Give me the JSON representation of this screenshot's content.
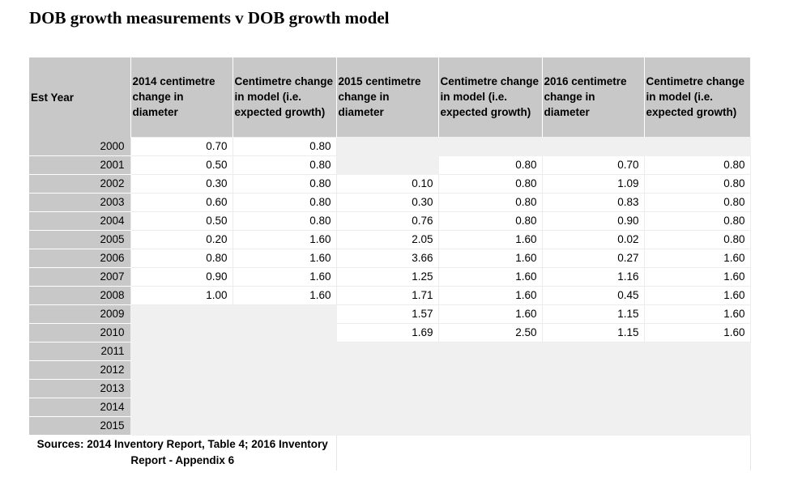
{
  "title": "DOB growth measurements v DOB growth model",
  "headers": [
    "Est Year",
    "2014 centimetre change in diameter",
    "Centimetre change in model (i.e. expected growth)",
    "2015 centimetre change in diameter",
    "Centimetre change in model (i.e. expected growth)",
    "2016 centimetre change in diameter",
    "Centimetre change in model (i.e. expected growth)"
  ],
  "rows": [
    {
      "year": "2000",
      "m2014": "0.70",
      "e2014": "0.80",
      "m2015": "",
      "e2015": "",
      "m2016": "",
      "e2016": ""
    },
    {
      "year": "2001",
      "m2014": "0.50",
      "e2014": "0.80",
      "m2015": "",
      "e2015": "0.80",
      "m2016": "0.70",
      "e2016": "0.80"
    },
    {
      "year": "2002",
      "m2014": "0.30",
      "e2014": "0.80",
      "m2015": "0.10",
      "e2015": "0.80",
      "m2016": "1.09",
      "e2016": "0.80"
    },
    {
      "year": "2003",
      "m2014": "0.60",
      "e2014": "0.80",
      "m2015": "0.30",
      "e2015": "0.80",
      "m2016": "0.83",
      "e2016": "0.80"
    },
    {
      "year": "2004",
      "m2014": "0.50",
      "e2014": "0.80",
      "m2015": "0.76",
      "e2015": "0.80",
      "m2016": "0.90",
      "e2016": "0.80"
    },
    {
      "year": "2005",
      "m2014": "0.20",
      "e2014": "1.60",
      "m2015": "2.05",
      "e2015": "1.60",
      "m2016": "0.02",
      "e2016": "0.80"
    },
    {
      "year": "2006",
      "m2014": "0.80",
      "e2014": "1.60",
      "m2015": "3.66",
      "e2015": "1.60",
      "m2016": "0.27",
      "e2016": "1.60"
    },
    {
      "year": "2007",
      "m2014": "0.90",
      "e2014": "1.60",
      "m2015": "1.25",
      "e2015": "1.60",
      "m2016": "1.16",
      "e2016": "1.60"
    },
    {
      "year": "2008",
      "m2014": "1.00",
      "e2014": "1.60",
      "m2015": "1.71",
      "e2015": "1.60",
      "m2016": "0.45",
      "e2016": "1.60"
    },
    {
      "year": "2009",
      "m2014": "",
      "e2014": "",
      "m2015": "1.57",
      "e2015": "1.60",
      "m2016": "1.15",
      "e2016": "1.60"
    },
    {
      "year": "2010",
      "m2014": "",
      "e2014": "",
      "m2015": "1.69",
      "e2015": "2.50",
      "m2016": "1.15",
      "e2016": "1.60"
    },
    {
      "year": "2011",
      "m2014": "",
      "e2014": "",
      "m2015": "",
      "e2015": "",
      "m2016": "",
      "e2016": ""
    },
    {
      "year": "2012",
      "m2014": "",
      "e2014": "",
      "m2015": "",
      "e2015": "",
      "m2016": "",
      "e2016": ""
    },
    {
      "year": "2013",
      "m2014": "",
      "e2014": "",
      "m2015": "",
      "e2015": "",
      "m2016": "",
      "e2016": ""
    },
    {
      "year": "2014",
      "m2014": "",
      "e2014": "",
      "m2015": "",
      "e2015": "",
      "m2016": "",
      "e2016": ""
    },
    {
      "year": "2015",
      "m2014": "",
      "e2014": "",
      "m2015": "",
      "e2015": "",
      "m2016": "",
      "e2016": ""
    }
  ],
  "negative_marker": "-",
  "sources": "Sources: 2014 Inventory Report, Table 4; 2016 Inventory Report - Appendix 6"
}
